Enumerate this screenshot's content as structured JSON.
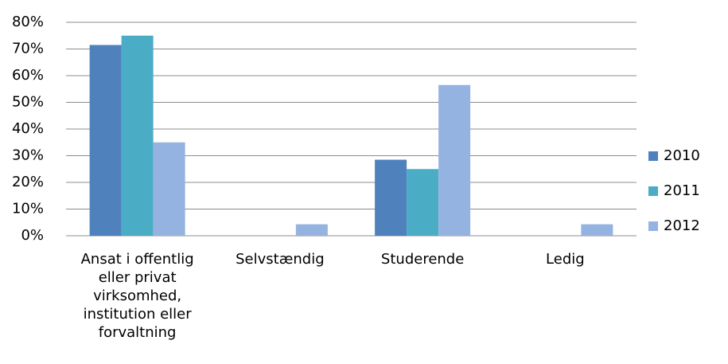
{
  "chart_data": {
    "type": "bar",
    "categories": [
      "Ansat i offentlig eller privat virksomhed, institution eller forvaltning",
      "Selvstændig",
      "Studerende",
      "Ledig"
    ],
    "series": [
      {
        "name": "2010",
        "color": "#4f81bd",
        "values": [
          71.5,
          0,
          28.5,
          0
        ]
      },
      {
        "name": "2011",
        "color": "#4bacc6",
        "values": [
          75,
          0,
          25,
          0
        ]
      },
      {
        "name": "2012",
        "color": "#95b3e0",
        "values": [
          35,
          4.3,
          56.5,
          4.3
        ]
      }
    ],
    "ylim": [
      0,
      80
    ],
    "yticks": [
      {
        "value": 0,
        "label": "0%"
      },
      {
        "value": 10,
        "label": "10%"
      },
      {
        "value": 20,
        "label": "20%"
      },
      {
        "value": 30,
        "label": "30%"
      },
      {
        "value": 40,
        "label": "40%"
      },
      {
        "value": 50,
        "label": "50%"
      },
      {
        "value": 60,
        "label": "60%"
      },
      {
        "value": 70,
        "label": "70%"
      },
      {
        "value": 80,
        "label": "80%"
      }
    ],
    "grid": true,
    "legend": "right"
  }
}
